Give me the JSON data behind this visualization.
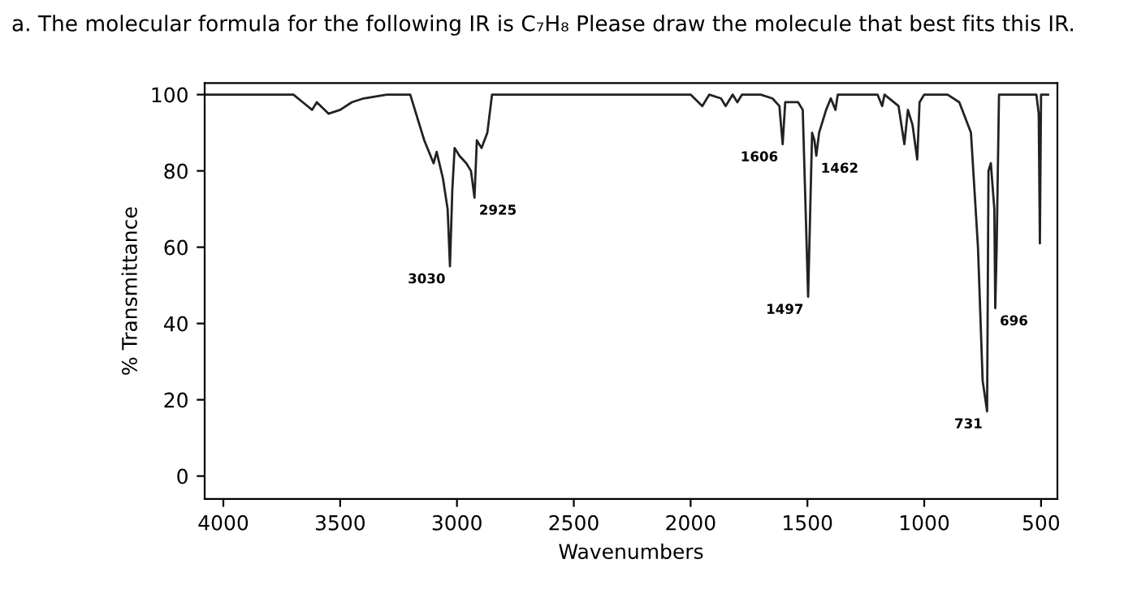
{
  "chart_data": {
    "type": "line",
    "title": "a. The molecular formula for the following IR is C₇H₈ Please draw the molecule that best fits this IR.",
    "xlabel": "Wavenumbers",
    "ylabel": "% Transmittance",
    "x": [
      4080,
      3700,
      3660,
      3620,
      3600,
      3550,
      3500,
      3450,
      3400,
      3300,
      3200,
      3140,
      3100,
      3087,
      3060,
      3040,
      3030,
      3020,
      3010,
      2990,
      2960,
      2940,
      2925,
      2915,
      2895,
      2870,
      2850,
      2500,
      2000,
      1950,
      1920,
      1870,
      1850,
      1820,
      1800,
      1780,
      1700,
      1650,
      1620,
      1606,
      1595,
      1540,
      1520,
      1497,
      1480,
      1470,
      1462,
      1450,
      1420,
      1400,
      1380,
      1370,
      1200,
      1180,
      1170,
      1110,
      1085,
      1070,
      1050,
      1030,
      1020,
      1000,
      900,
      850,
      800,
      770,
      750,
      731,
      725,
      715,
      700,
      696,
      690,
      680,
      600,
      520,
      510,
      505,
      500,
      470
    ],
    "series": [
      {
        "color": "#222222",
        "values": [
          100,
          100,
          98,
          96,
          98,
          95,
          96,
          98,
          99,
          100,
          100,
          88,
          82,
          85,
          78,
          70,
          55,
          75,
          86,
          84,
          82,
          80,
          73,
          88,
          86,
          90,
          100,
          100,
          100,
          97,
          100,
          99,
          97,
          100,
          98,
          100,
          100,
          99,
          97,
          87,
          98,
          98,
          96,
          47,
          90,
          88,
          84,
          90,
          96,
          99,
          96,
          100,
          100,
          97,
          100,
          97,
          87,
          96,
          92,
          83,
          98,
          100,
          100,
          98,
          90,
          60,
          25,
          17,
          80,
          82,
          70,
          44,
          60,
          100,
          100,
          100,
          95,
          61,
          100,
          100
        ]
      }
    ],
    "annotations": [
      {
        "text": "3030",
        "x": 3030,
        "y": 55
      },
      {
        "text": "2925",
        "x": 2925,
        "y": 73
      },
      {
        "text": "1606",
        "x": 1606,
        "y": 87
      },
      {
        "text": "1462",
        "x": 1462,
        "y": 84
      },
      {
        "text": "1497",
        "x": 1497,
        "y": 47
      },
      {
        "text": "731",
        "x": 731,
        "y": 17
      },
      {
        "text": "696",
        "x": 696,
        "y": 44
      }
    ],
    "xlim": [
      4080,
      430
    ],
    "ylim": [
      -6,
      103
    ],
    "xticks": [
      4000,
      3500,
      3000,
      2500,
      2000,
      1500,
      1000,
      500
    ],
    "yticks": [
      0,
      20,
      40,
      60,
      80,
      100
    ],
    "grid": false,
    "legend": false,
    "marker": "none",
    "line_style": "solid"
  }
}
